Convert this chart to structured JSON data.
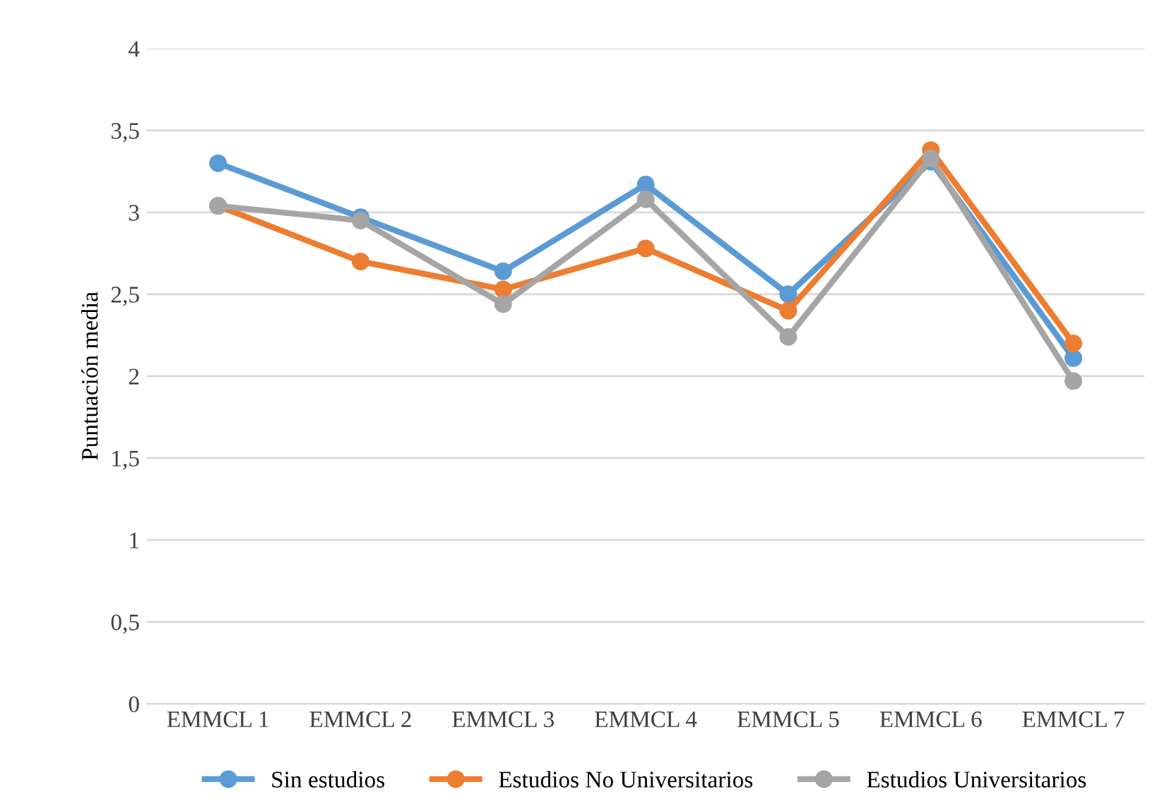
{
  "chart_data": {
    "type": "line",
    "ylabel": "Puntuación media",
    "categories": [
      "EMMCL 1",
      "EMMCL 2",
      "EMMCL 3",
      "EMMCL 4",
      "EMMCL 5",
      "EMMCL 6",
      "EMMCL 7"
    ],
    "series": [
      {
        "name": "Sin estudios",
        "color": "#5b9bd5",
        "values": [
          3.3,
          2.97,
          2.64,
          3.17,
          2.5,
          3.31,
          2.11
        ]
      },
      {
        "name": "Estudios No Universitarios",
        "color": "#ed7d31",
        "values": [
          3.04,
          2.7,
          2.53,
          2.78,
          2.4,
          3.38,
          2.2
        ]
      },
      {
        "name": "Estudios Universitarios",
        "color": "#a5a5a5",
        "values": [
          3.04,
          2.95,
          2.44,
          3.08,
          2.24,
          3.33,
          1.97
        ]
      }
    ],
    "ylim": [
      0,
      4
    ],
    "yticks": [
      0,
      {
        "value": 0.5,
        "label": "0,5"
      },
      1,
      {
        "value": 1.5,
        "label": "1,5"
      },
      2,
      {
        "value": 2.5,
        "label": "2,5"
      },
      3,
      {
        "value": 3.5,
        "label": "3,5"
      },
      4
    ],
    "grid": "y",
    "legend": "bottom",
    "marker": "circle",
    "line_style": "solid"
  }
}
